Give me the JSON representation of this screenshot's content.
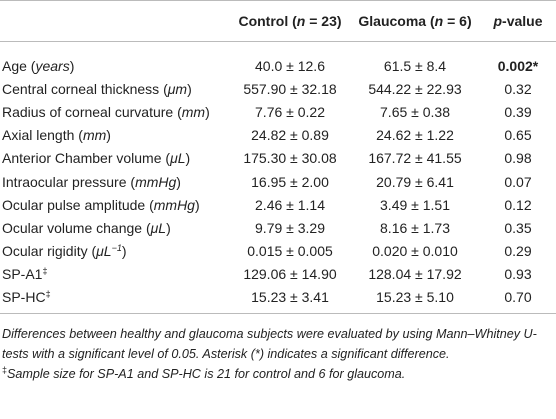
{
  "table": {
    "header": [
      [
        {
          "text": "Control ("
        },
        {
          "text": "n",
          "italic": true
        },
        {
          "text": " = 23)"
        }
      ],
      [
        {
          "text": "Glaucoma ("
        },
        {
          "text": "n",
          "italic": true
        },
        {
          "text": " = 6)"
        }
      ],
      [
        {
          "text": "p",
          "italic": true
        },
        {
          "text": "-value"
        }
      ]
    ],
    "rows": [
      {
        "label": [
          {
            "text": "Age ("
          },
          {
            "text": "years",
            "italic": true
          },
          {
            "text": ")"
          }
        ],
        "cells": [
          "40.0 ± 12.6",
          "61.5 ± 8.4",
          {
            "text": "0.002*",
            "bold": true
          }
        ]
      },
      {
        "label": [
          {
            "text": "Central corneal thickness ("
          },
          {
            "text": "μm",
            "italic": true
          },
          {
            "text": ")"
          }
        ],
        "cells": [
          "557.90 ± 32.18",
          "544.22 ± 22.93",
          "0.32"
        ]
      },
      {
        "label": [
          {
            "text": "Radius of corneal curvature ("
          },
          {
            "text": "mm",
            "italic": true
          },
          {
            "text": ")"
          }
        ],
        "cells": [
          "7.76 ± 0.22",
          "7.65 ± 0.38",
          "0.39"
        ]
      },
      {
        "label": [
          {
            "text": "Axial length ("
          },
          {
            "text": "mm",
            "italic": true
          },
          {
            "text": ")"
          }
        ],
        "cells": [
          "24.82 ± 0.89",
          "24.62 ± 1.22",
          "0.65"
        ]
      },
      {
        "label": [
          {
            "text": "Anterior Chamber volume ("
          },
          {
            "text": "μL",
            "italic": true
          },
          {
            "text": ")"
          }
        ],
        "cells": [
          "175.30 ± 30.08",
          "167.72 ± 41.55",
          "0.98"
        ]
      },
      {
        "label": [
          {
            "text": "Intraocular pressure ("
          },
          {
            "text": "mmHg",
            "italic": true
          },
          {
            "text": ")"
          }
        ],
        "cells": [
          "16.95 ± 2.00",
          "20.79 ± 6.41",
          "0.07"
        ]
      },
      {
        "label": [
          {
            "text": "Ocular pulse amplitude ("
          },
          {
            "text": "mmHg",
            "italic": true
          },
          {
            "text": ")"
          }
        ],
        "cells": [
          "2.46 ± 1.14",
          "3.49 ± 1.51",
          "0.12"
        ]
      },
      {
        "label": [
          {
            "text": "Ocular volume change ("
          },
          {
            "text": "μL",
            "italic": true
          },
          {
            "text": ")"
          }
        ],
        "cells": [
          "9.79 ± 3.29",
          "8.16 ± 1.73",
          "0.35"
        ]
      },
      {
        "label": [
          {
            "text": "Ocular rigidity ("
          },
          {
            "text": "μL",
            "italic": true
          },
          {
            "text": "−1",
            "italic": true,
            "sup": true
          },
          {
            "text": ")"
          }
        ],
        "cells": [
          "0.015 ± 0.005",
          "0.020 ± 0.010",
          "0.29"
        ]
      },
      {
        "label": [
          {
            "text": "SP-A1"
          },
          {
            "text": "‡",
            "sup": true
          }
        ],
        "cells": [
          "129.06 ± 14.90",
          "128.04 ± 17.92",
          "0.93"
        ]
      },
      {
        "label": [
          {
            "text": "SP-HC"
          },
          {
            "text": "‡",
            "sup": true
          }
        ],
        "cells": [
          "15.23 ± 3.41",
          "15.23 ± 5.10",
          "0.70"
        ]
      }
    ],
    "notes": [
      [
        {
          "text": "Differences between healthy and glaucoma subjects were evaluated by using Mann–Whitney U-tests with a significant level of 0.05. Asterisk (*) indicates a significant difference.",
          "italic": true
        }
      ],
      [
        {
          "text": "‡",
          "sup": true
        },
        {
          "text": "Sample size for SP-A1 and SP-HC is 21 for control and 6 for glaucoma.",
          "italic": true
        }
      ]
    ]
  }
}
